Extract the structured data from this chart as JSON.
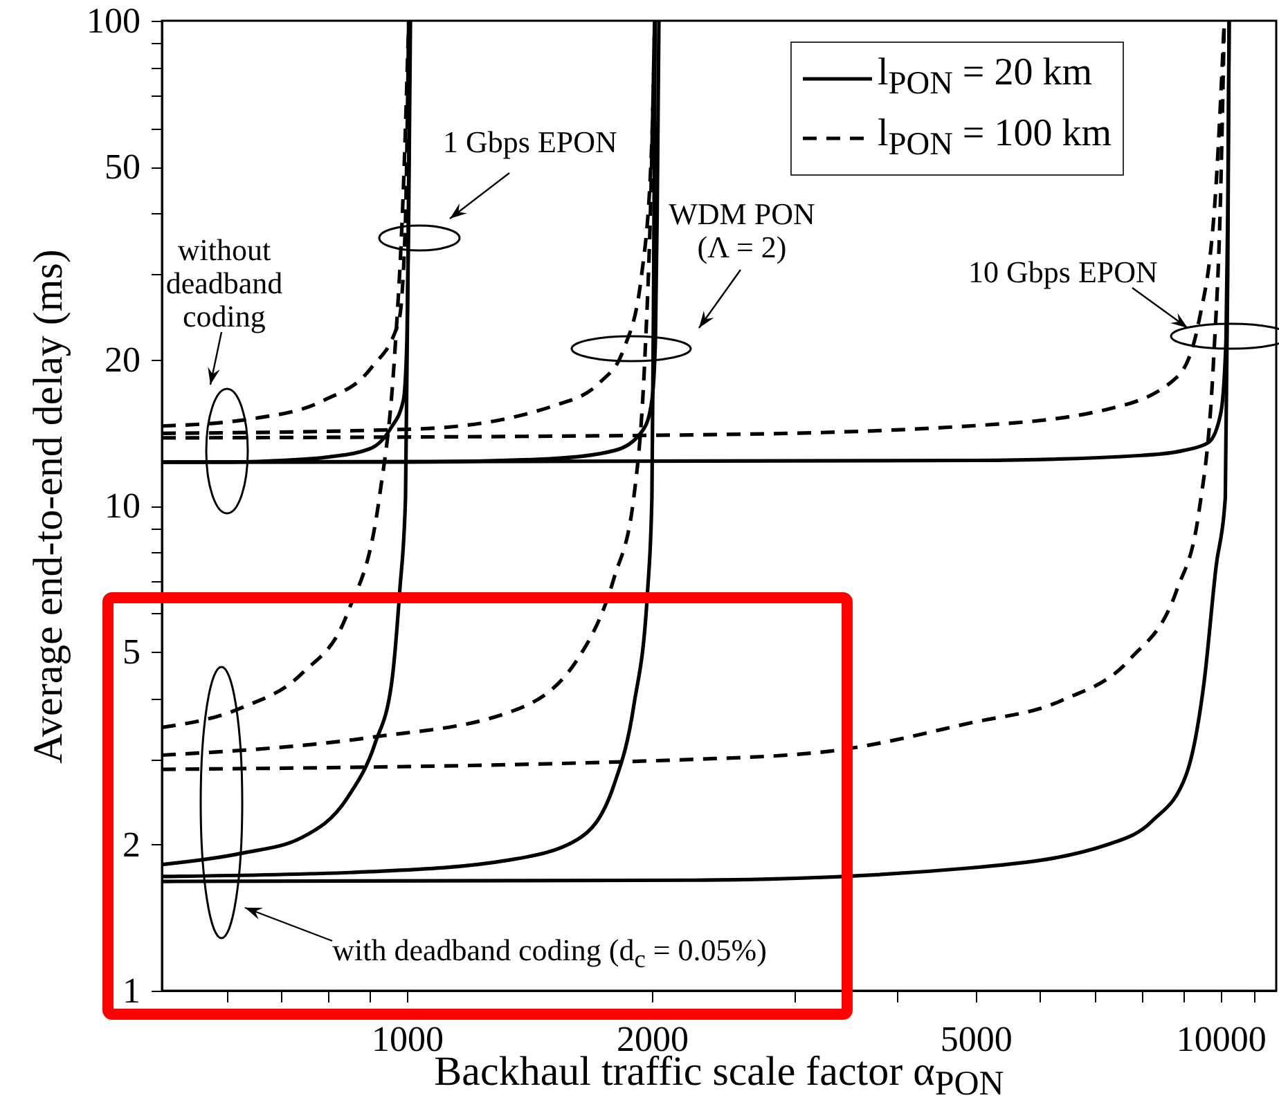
{
  "chart_data": {
    "type": "line",
    "xlabel": "Backhaul traffic scale factor α$_{PON}$",
    "ylabel": "Average end-to-end delay (ms)",
    "log": "xy",
    "legend": "top right",
    "xlim": [
      500,
      11700
    ],
    "ylim": [
      1,
      100
    ],
    "xticks": [
      {
        "value": 600,
        "label": null
      },
      {
        "value": 700,
        "label": null
      },
      {
        "value": 800,
        "label": null
      },
      {
        "value": 900,
        "label": null
      },
      1000,
      2000,
      {
        "value": 3000,
        "label": null
      },
      {
        "value": 4000,
        "label": null
      },
      5000,
      {
        "value": 6000,
        "label": null
      },
      {
        "value": 7000,
        "label": null
      },
      {
        "value": 8000,
        "label": null
      },
      {
        "value": 9000,
        "label": null
      },
      10000,
      {
        "value": 11000,
        "label": null
      }
    ],
    "yticks": [
      1,
      2,
      {
        "value": 3,
        "label": null
      },
      {
        "value": 4,
        "label": null
      },
      5,
      {
        "value": 6,
        "label": null
      },
      {
        "value": 7,
        "label": null
      },
      {
        "value": 8,
        "label": null
      },
      {
        "value": 9,
        "label": null
      },
      10,
      20,
      {
        "value": 30,
        "label": null
      },
      {
        "value": 40,
        "label": null
      },
      50,
      {
        "value": 60,
        "label": null
      },
      {
        "value": 70,
        "label": null
      },
      {
        "value": 80,
        "label": null
      },
      {
        "value": 90,
        "label": null
      },
      100
    ],
    "series": [
      {
        "name": "l$_{PON}$ = 20 km",
        "color": "#000000",
        "line_style": "solid",
        "x": [
          500,
          600,
          700,
          800,
          900,
          954,
          990,
          1000,
          1005,
          1010
        ],
        "values": [
          12.3,
          12.3,
          12.4,
          12.6,
          13.1,
          14.4,
          16.5,
          22,
          40,
          100
        ]
      },
      {
        "color": "#000000",
        "line_style": "solid",
        "x": [
          500,
          1000,
          1500,
          1800,
          1954,
          2000,
          2020,
          2030,
          2040
        ],
        "values": [
          12.3,
          12.3,
          12.5,
          13.0,
          14.4,
          16.5,
          22,
          40,
          100
        ]
      },
      {
        "color": "#000000",
        "line_style": "solid",
        "x": [
          500,
          5000,
          8000,
          9000,
          9660,
          10000,
          10150,
          10200,
          10240
        ],
        "values": [
          12.3,
          12.4,
          12.7,
          13.0,
          13.5,
          15.5,
          22,
          40,
          100
        ]
      },
      {
        "name": "l$_{PON}$ = 100 km",
        "color": "#000000",
        "line_style": "dashed",
        "x": [
          500,
          643,
          791,
          903,
          977,
          995,
          1005
        ],
        "values": [
          14.6,
          15.1,
          16.5,
          19.2,
          24,
          37,
          100
        ]
      },
      {
        "color": "#000000",
        "line_style": "dashed",
        "x": [
          500,
          1030,
          1520,
          1729,
          1846,
          1943,
          2000,
          2015
        ],
        "values": [
          14.1,
          14.4,
          16.1,
          18,
          21,
          30,
          57,
          100
        ]
      },
      {
        "color": "#000000",
        "line_style": "dashed",
        "x": [
          500,
          2250,
          4900,
          7250,
          8830,
          9400,
          9870,
          10100
        ],
        "values": [
          13.8,
          14.0,
          14.6,
          15.8,
          18.4,
          24,
          46,
          100
        ]
      },
      {
        "color": "#000000",
        "line_style": "solid",
        "x": [
          500,
          626,
          743,
          845,
          914,
          958,
          980,
          996,
          1003,
          1008
        ],
        "values": [
          1.82,
          1.92,
          2.07,
          2.5,
          3.24,
          4.33,
          6.7,
          10.4,
          30,
          100
        ]
      },
      {
        "color": "#000000",
        "line_style": "solid",
        "x": [
          500,
          903,
          1335,
          1620,
          1797,
          1900,
          1976,
          2000,
          2010,
          2018
        ],
        "values": [
          1.72,
          1.76,
          1.86,
          2.05,
          2.66,
          3.87,
          6.7,
          10.4,
          30,
          100
        ]
      },
      {
        "color": "#000000",
        "line_style": "solid",
        "x": [
          500,
          2250,
          4900,
          7250,
          8240,
          9070,
          9540,
          9870,
          10130,
          10200,
          10240
        ],
        "values": [
          1.68,
          1.69,
          1.79,
          2.0,
          2.24,
          2.79,
          4.33,
          7.5,
          10.4,
          30,
          100
        ]
      },
      {
        "color": "#000000",
        "line_style": "dashed",
        "x": [
          500,
          626,
          743,
          845,
          925,
          965,
          990,
          1005
        ],
        "values": [
          3.49,
          3.83,
          4.51,
          6.0,
          10.4,
          20,
          45,
          100
        ]
      },
      {
        "color": "#000000",
        "line_style": "dashed",
        "x": [
          500,
          903,
          1335,
          1620,
          1797,
          1900,
          1960,
          1995,
          2015
        ],
        "values": [
          3.06,
          3.33,
          3.75,
          4.82,
          7.1,
          10.4,
          20,
          45,
          100
        ]
      },
      {
        "color": "#000000",
        "line_style": "dashed",
        "x": [
          500,
          2250,
          3320,
          4900,
          6360,
          7730,
          8830,
          9400,
          9800,
          10000,
          10100
        ],
        "values": [
          2.86,
          3.0,
          3.12,
          3.56,
          3.96,
          4.82,
          6.7,
          9.7,
          20,
          45,
          100
        ]
      }
    ],
    "annotations": [
      "1 Gbps EPON",
      "WDM PON\n(Λ = 2)",
      "10 Gbps EPON",
      "without deadband coding",
      "with deadband coding (d$_{c}$ = 0.05%)"
    ]
  }
}
